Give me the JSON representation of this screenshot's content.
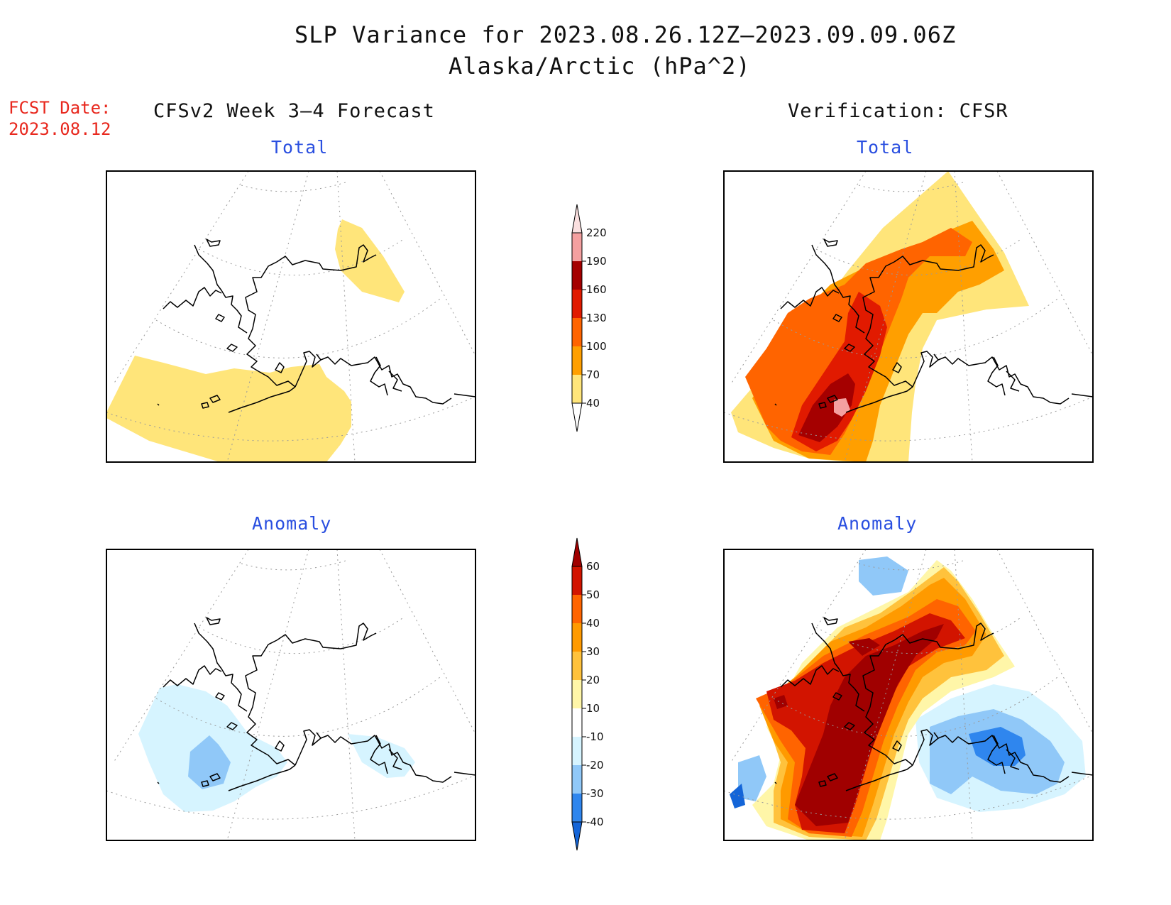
{
  "header": {
    "title_line1": "SLP Variance for 2023.08.26.12Z—2023.09.09.06Z",
    "title_line2": "Alaska/Arctic (hPa^2)",
    "fcst_label": "FCST Date:",
    "fcst_date": "2023.08.12",
    "left_column": "CFSv2 Week 3—4 Forecast",
    "right_column": "Verification: CFSR"
  },
  "panels": {
    "top_left": {
      "title": "Total"
    },
    "top_right": {
      "title": "Total"
    },
    "bottom_left": {
      "title": "Anomaly"
    },
    "bottom_right": {
      "title": "Anomaly"
    }
  },
  "colorbars": {
    "total": {
      "labels": [
        "40",
        "70",
        "100",
        "130",
        "160",
        "190",
        "220"
      ],
      "colors": [
        "#ffffff",
        "#ffe57a",
        "#ff9f00",
        "#ff6400",
        "#e11a00",
        "#a50000",
        "#f4a0a0",
        "#fbe0e0"
      ]
    },
    "anomaly": {
      "labels": [
        "-40",
        "-30",
        "-20",
        "-10",
        "10",
        "20",
        "30",
        "40",
        "50",
        "60"
      ],
      "colors": [
        "#1465d8",
        "#2f86ee",
        "#90c8f8",
        "#d6f4ff",
        "#ffffff",
        "#fff6a8",
        "#ffc23c",
        "#ff9a00",
        "#ff6400",
        "#d21400",
        "#a00000"
      ]
    }
  },
  "icons": {
    "coastline": "alaska-coastline-icon"
  }
}
